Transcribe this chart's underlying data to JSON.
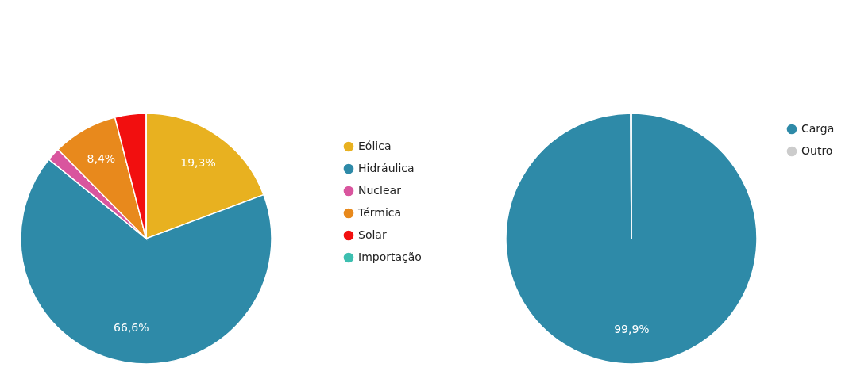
{
  "chart_data": [
    {
      "type": "pie",
      "categories": [
        "Eólica",
        "Hidráulica",
        "Nuclear",
        "Térmica",
        "Solar",
        "Importação"
      ],
      "values": [
        19.3,
        66.6,
        1.7,
        8.4,
        4.0,
        0.0
      ],
      "colors": [
        "#e8b120",
        "#2e8aa8",
        "#d9559e",
        "#e8891c",
        "#f20f0f",
        "#3dbfb0"
      ],
      "value_labels": [
        "19,3%",
        "66,6%",
        null,
        "8,4%",
        null,
        null
      ],
      "legend": "top right"
    },
    {
      "type": "pie",
      "categories": [
        "Carga",
        "Outro"
      ],
      "values": [
        99.9,
        0.1
      ],
      "colors": [
        "#2e8aa8",
        "#cccccc"
      ],
      "value_labels": [
        "99,9%",
        null
      ],
      "legend": "top right"
    }
  ]
}
